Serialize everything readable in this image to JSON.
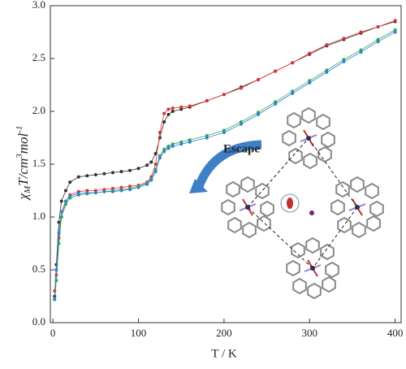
{
  "chart_data": {
    "type": "line",
    "x_label": "T / K",
    "y_label": [
      "χ",
      "M",
      "T/cm",
      "3",
      "mol",
      "-1"
    ],
    "annotation": "Escape",
    "x": [
      2,
      4,
      7,
      10,
      15,
      20,
      30,
      40,
      50,
      60,
      70,
      80,
      90,
      100,
      110,
      115,
      120,
      125,
      130,
      135,
      140,
      150,
      160,
      180,
      200,
      220,
      240,
      260,
      280,
      300,
      320,
      340,
      360,
      380,
      400
    ],
    "series": [
      {
        "color": "#333333",
        "values": [
          0.25,
          0.55,
          0.95,
          1.15,
          1.25,
          1.33,
          1.38,
          1.39,
          1.4,
          1.41,
          1.42,
          1.43,
          1.44,
          1.46,
          1.49,
          1.52,
          1.6,
          1.75,
          1.9,
          1.97,
          2.0,
          2.02,
          2.04,
          2.1,
          2.16,
          2.23,
          2.3,
          2.38,
          2.46,
          2.54,
          2.62,
          2.68,
          2.74,
          2.8,
          2.85
        ]
      },
      {
        "color": "#e03030",
        "values": [
          0.3,
          0.45,
          0.8,
          1.0,
          1.15,
          1.21,
          1.24,
          1.25,
          1.25,
          1.26,
          1.27,
          1.28,
          1.29,
          1.3,
          1.33,
          1.38,
          1.5,
          1.8,
          1.98,
          2.02,
          2.03,
          2.04,
          2.05,
          2.1,
          2.16,
          2.22,
          2.3,
          2.38,
          2.46,
          2.55,
          2.63,
          2.69,
          2.75,
          2.8,
          2.86
        ]
      },
      {
        "color": "#2fa84f",
        "values": [
          0.22,
          0.4,
          0.75,
          1.0,
          1.12,
          1.18,
          1.21,
          1.22,
          1.23,
          1.24,
          1.25,
          1.26,
          1.27,
          1.29,
          1.32,
          1.36,
          1.45,
          1.58,
          1.64,
          1.67,
          1.69,
          1.71,
          1.73,
          1.77,
          1.82,
          1.9,
          1.99,
          2.09,
          2.19,
          2.29,
          2.39,
          2.49,
          2.58,
          2.68,
          2.77
        ]
      },
      {
        "color": "#2f7fd8",
        "values": [
          0.22,
          0.5,
          0.85,
          1.05,
          1.15,
          1.2,
          1.22,
          1.23,
          1.23,
          1.24,
          1.24,
          1.25,
          1.26,
          1.28,
          1.31,
          1.35,
          1.43,
          1.56,
          1.62,
          1.65,
          1.67,
          1.69,
          1.71,
          1.75,
          1.8,
          1.88,
          1.97,
          2.07,
          2.17,
          2.27,
          2.37,
          2.47,
          2.56,
          2.66,
          2.75
        ]
      }
    ],
    "xlim": [
      -3,
      407
    ],
    "xticks": [
      0,
      100,
      200,
      300,
      400
    ],
    "ylim": [
      0,
      3
    ],
    "yticks": [
      {
        "value": 0,
        "label": "0.0"
      },
      {
        "value": 0.5,
        "label": "0.5"
      },
      {
        "value": 1,
        "label": "1.0"
      },
      {
        "value": 1.5,
        "label": "1.5"
      },
      {
        "value": 2,
        "label": "2.0"
      },
      {
        "value": 2.5,
        "label": "2.5"
      },
      {
        "value": 3,
        "label": "3.0"
      }
    ]
  }
}
